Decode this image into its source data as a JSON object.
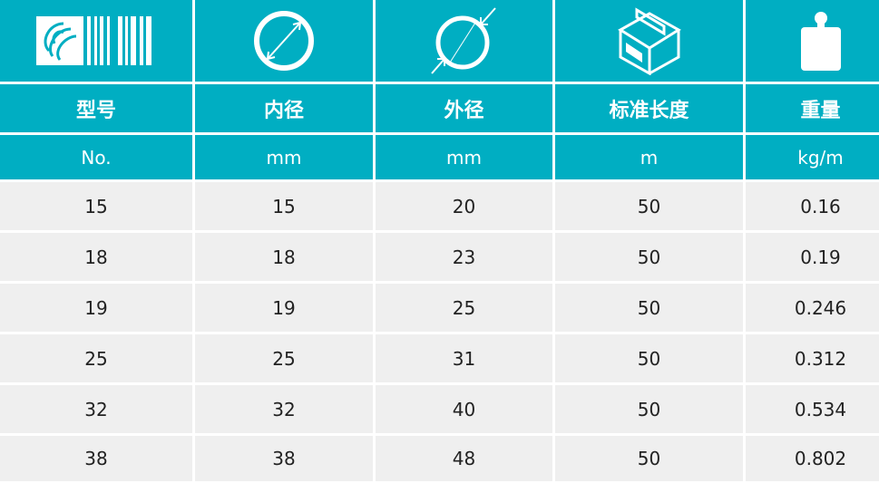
{
  "theme": {
    "header_bg": "#00aec2",
    "row_bg": "#efefef"
  },
  "icons": [
    "barcode-logo-icon",
    "inner-diameter-icon",
    "outer-diameter-icon",
    "box-length-icon",
    "weight-icon"
  ],
  "headers": [
    "型号",
    "内径",
    "外径",
    "标准长度",
    "重量"
  ],
  "units": [
    "No.",
    "mm",
    "mm",
    "m",
    "kg/m"
  ],
  "rows": [
    [
      "15",
      "15",
      "20",
      "50",
      "0.16"
    ],
    [
      "18",
      "18",
      "23",
      "50",
      "0.19"
    ],
    [
      "19",
      "19",
      "25",
      "50",
      "0.246"
    ],
    [
      "25",
      "25",
      "31",
      "50",
      "0.312"
    ],
    [
      "32",
      "32",
      "40",
      "50",
      "0.534"
    ],
    [
      "38",
      "38",
      "48",
      "50",
      "0.802"
    ]
  ]
}
